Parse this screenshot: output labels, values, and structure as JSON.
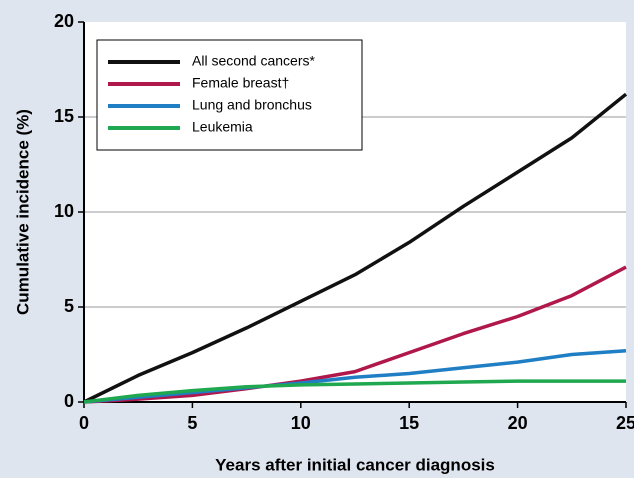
{
  "chart_data": {
    "type": "line",
    "xlabel": "Years after initial cancer diagnosis",
    "ylabel": "Cumulative incidence (%)",
    "x": [
      0,
      2.5,
      5,
      7.5,
      10,
      12.5,
      15,
      17.5,
      20,
      22.5,
      25
    ],
    "series": [
      {
        "name": "All second cancers*",
        "color": "#111111",
        "values": [
          0,
          1.4,
          2.6,
          3.9,
          5.3,
          6.7,
          8.4,
          10.3,
          12.1,
          13.9,
          16.2
        ]
      },
      {
        "name": "Female breast†",
        "color": "#b0174a",
        "values": [
          0,
          0.15,
          0.35,
          0.7,
          1.1,
          1.6,
          2.6,
          3.6,
          4.5,
          5.6,
          7.1
        ]
      },
      {
        "name": "Lung and bronchus",
        "color": "#1f7ec4",
        "values": [
          0,
          0.25,
          0.5,
          0.75,
          1.0,
          1.3,
          1.5,
          1.8,
          2.1,
          2.5,
          2.7
        ]
      },
      {
        "name": "Leukemia",
        "color": "#1fa84f",
        "values": [
          0,
          0.35,
          0.6,
          0.8,
          0.9,
          0.95,
          1.0,
          1.05,
          1.1,
          1.1,
          1.1
        ]
      }
    ],
    "xlim": [
      0,
      25
    ],
    "xticks": [
      0,
      5,
      10,
      15,
      20,
      25
    ],
    "ylim": [
      0,
      20
    ],
    "yticks": [
      0,
      5,
      10,
      15,
      20
    ],
    "grid": true,
    "legend": "upper left"
  }
}
